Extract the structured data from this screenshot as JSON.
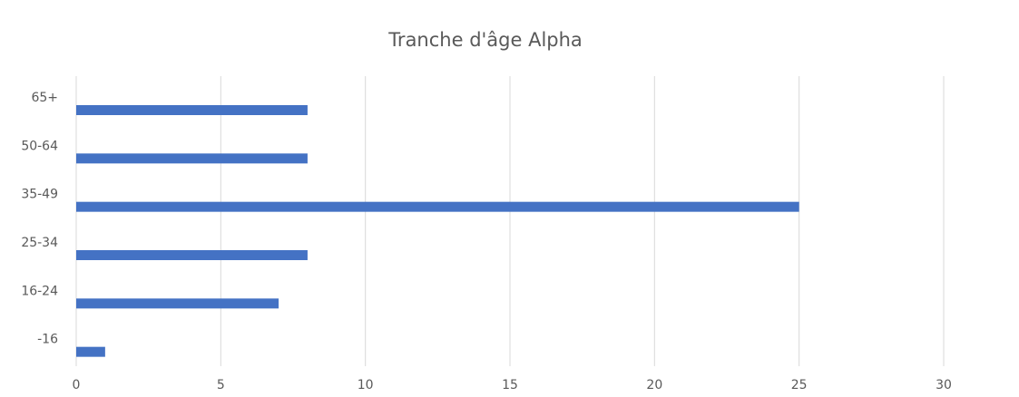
{
  "chart_data": {
    "type": "bar",
    "orientation": "horizontal",
    "title": "Tranche d'âge Alpha",
    "categories": [
      "65+",
      "50-64",
      "35-49",
      "25-34",
      "16-24",
      "-16"
    ],
    "values": [
      8,
      8,
      25,
      8,
      7,
      1
    ],
    "color": "#4472c4",
    "xlim": [
      0,
      30
    ],
    "xticks": [
      0,
      5,
      10,
      15,
      20,
      25,
      30
    ],
    "grid": true
  }
}
